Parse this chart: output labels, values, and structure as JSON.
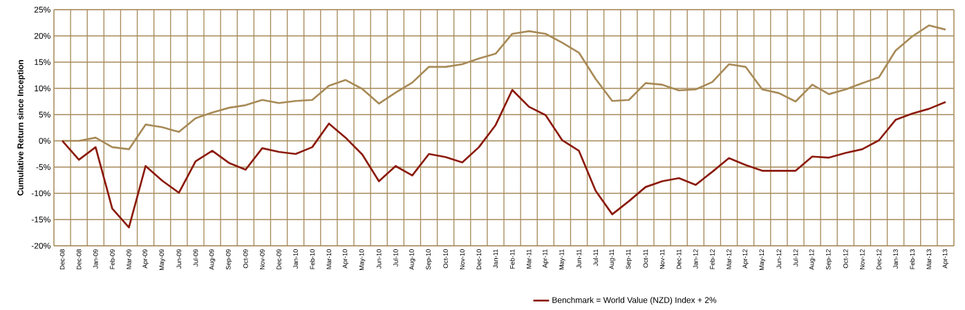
{
  "chart_data": {
    "type": "line",
    "ylabel": "Cumulative Return since Inception",
    "categories": [
      "Dec-08",
      "Dec-08",
      "Jan-09",
      "Feb-09",
      "Mar-09",
      "Apr-09",
      "May-09",
      "Jun-09",
      "Jul-09",
      "Aug-09",
      "Sep-09",
      "Oct-09",
      "Nov-09",
      "Dec-09",
      "Jan-10",
      "Feb-10",
      "Mar-10",
      "Apr-10",
      "May-10",
      "Jun-10",
      "Jul-10",
      "Aug-10",
      "Sep-10",
      "Oct-10",
      "Nov-10",
      "Dec-10",
      "Jan-11",
      "Feb-11",
      "Mar-11",
      "Apr-11",
      "May-11",
      "Jun-11",
      "Jul-11",
      "Aug-11",
      "Sep-11",
      "Oct-11",
      "Nov-11",
      "Dec-11",
      "Jan-12",
      "Feb-12",
      "Mar-12",
      "Apr-12",
      "May-12",
      "Jun-12",
      "Jul-12",
      "Aug-12",
      "Sep-12",
      "Oct-12",
      "Nov-12",
      "Dec-12",
      "Jan-13",
      "Feb-13",
      "Mar-13",
      "Apr-13"
    ],
    "series": [
      {
        "color": "#a88a57",
        "values": [
          0,
          0,
          0.6,
          -1.2,
          -1.6,
          3.1,
          2.6,
          1.7,
          4.3,
          5.4,
          6.3,
          6.8,
          7.8,
          7.2,
          7.6,
          7.8,
          10.5,
          11.6,
          9.9,
          7.1,
          9.2,
          11.1,
          14.1,
          14.1,
          14.6,
          15.7,
          16.6,
          20.4,
          20.9,
          20.4,
          18.7,
          16.8,
          11.8,
          7.6,
          7.8,
          11.0,
          10.7,
          9.6,
          9.8,
          11.2,
          14.6,
          14.1,
          9.8,
          9.1,
          7.5,
          10.7,
          8.9,
          9.8,
          11.0,
          12.1,
          17.2,
          19.9,
          22.0,
          21.2
        ]
      },
      {
        "name": "Benchmark = World Value (NZD) Index + 2%",
        "color": "#8b1a0a",
        "values": [
          0,
          -3.6,
          -1.2,
          -12.9,
          -16.5,
          -4.8,
          -7.6,
          -9.9,
          -3.9,
          -1.9,
          -4.2,
          -5.5,
          -1.4,
          -2.1,
          -2.5,
          -1.2,
          3.3,
          0.6,
          -2.6,
          -7.7,
          -4.8,
          -6.6,
          -2.5,
          -3.1,
          -4.1,
          -1.2,
          3.0,
          9.7,
          6.5,
          4.9,
          0.1,
          -1.9,
          -9.5,
          -14.0,
          -11.5,
          -8.8,
          -7.7,
          -7.1,
          -8.4,
          -5.9,
          -3.3,
          -4.6,
          -5.7,
          -5.7,
          -5.7,
          -3.0,
          -3.2,
          -2.3,
          -1.6,
          0.1,
          4.0,
          5.2,
          6.1,
          7.4
        ]
      }
    ],
    "ylim": [
      -20,
      25
    ],
    "yticks": [
      {
        "value": -20,
        "label": "-20%"
      },
      {
        "value": -15,
        "label": "-15%"
      },
      {
        "value": -10,
        "label": "-10%"
      },
      {
        "value": -5,
        "label": "-5%"
      },
      {
        "value": 0,
        "label": "0%"
      },
      {
        "value": 5,
        "label": "5%"
      },
      {
        "value": 10,
        "label": "10%"
      },
      {
        "value": 15,
        "label": "15%"
      },
      {
        "value": 20,
        "label": "20%"
      },
      {
        "value": 25,
        "label": "25%"
      }
    ],
    "grid": true,
    "legend": "bottom",
    "marker": "none",
    "line_style": "solid"
  }
}
